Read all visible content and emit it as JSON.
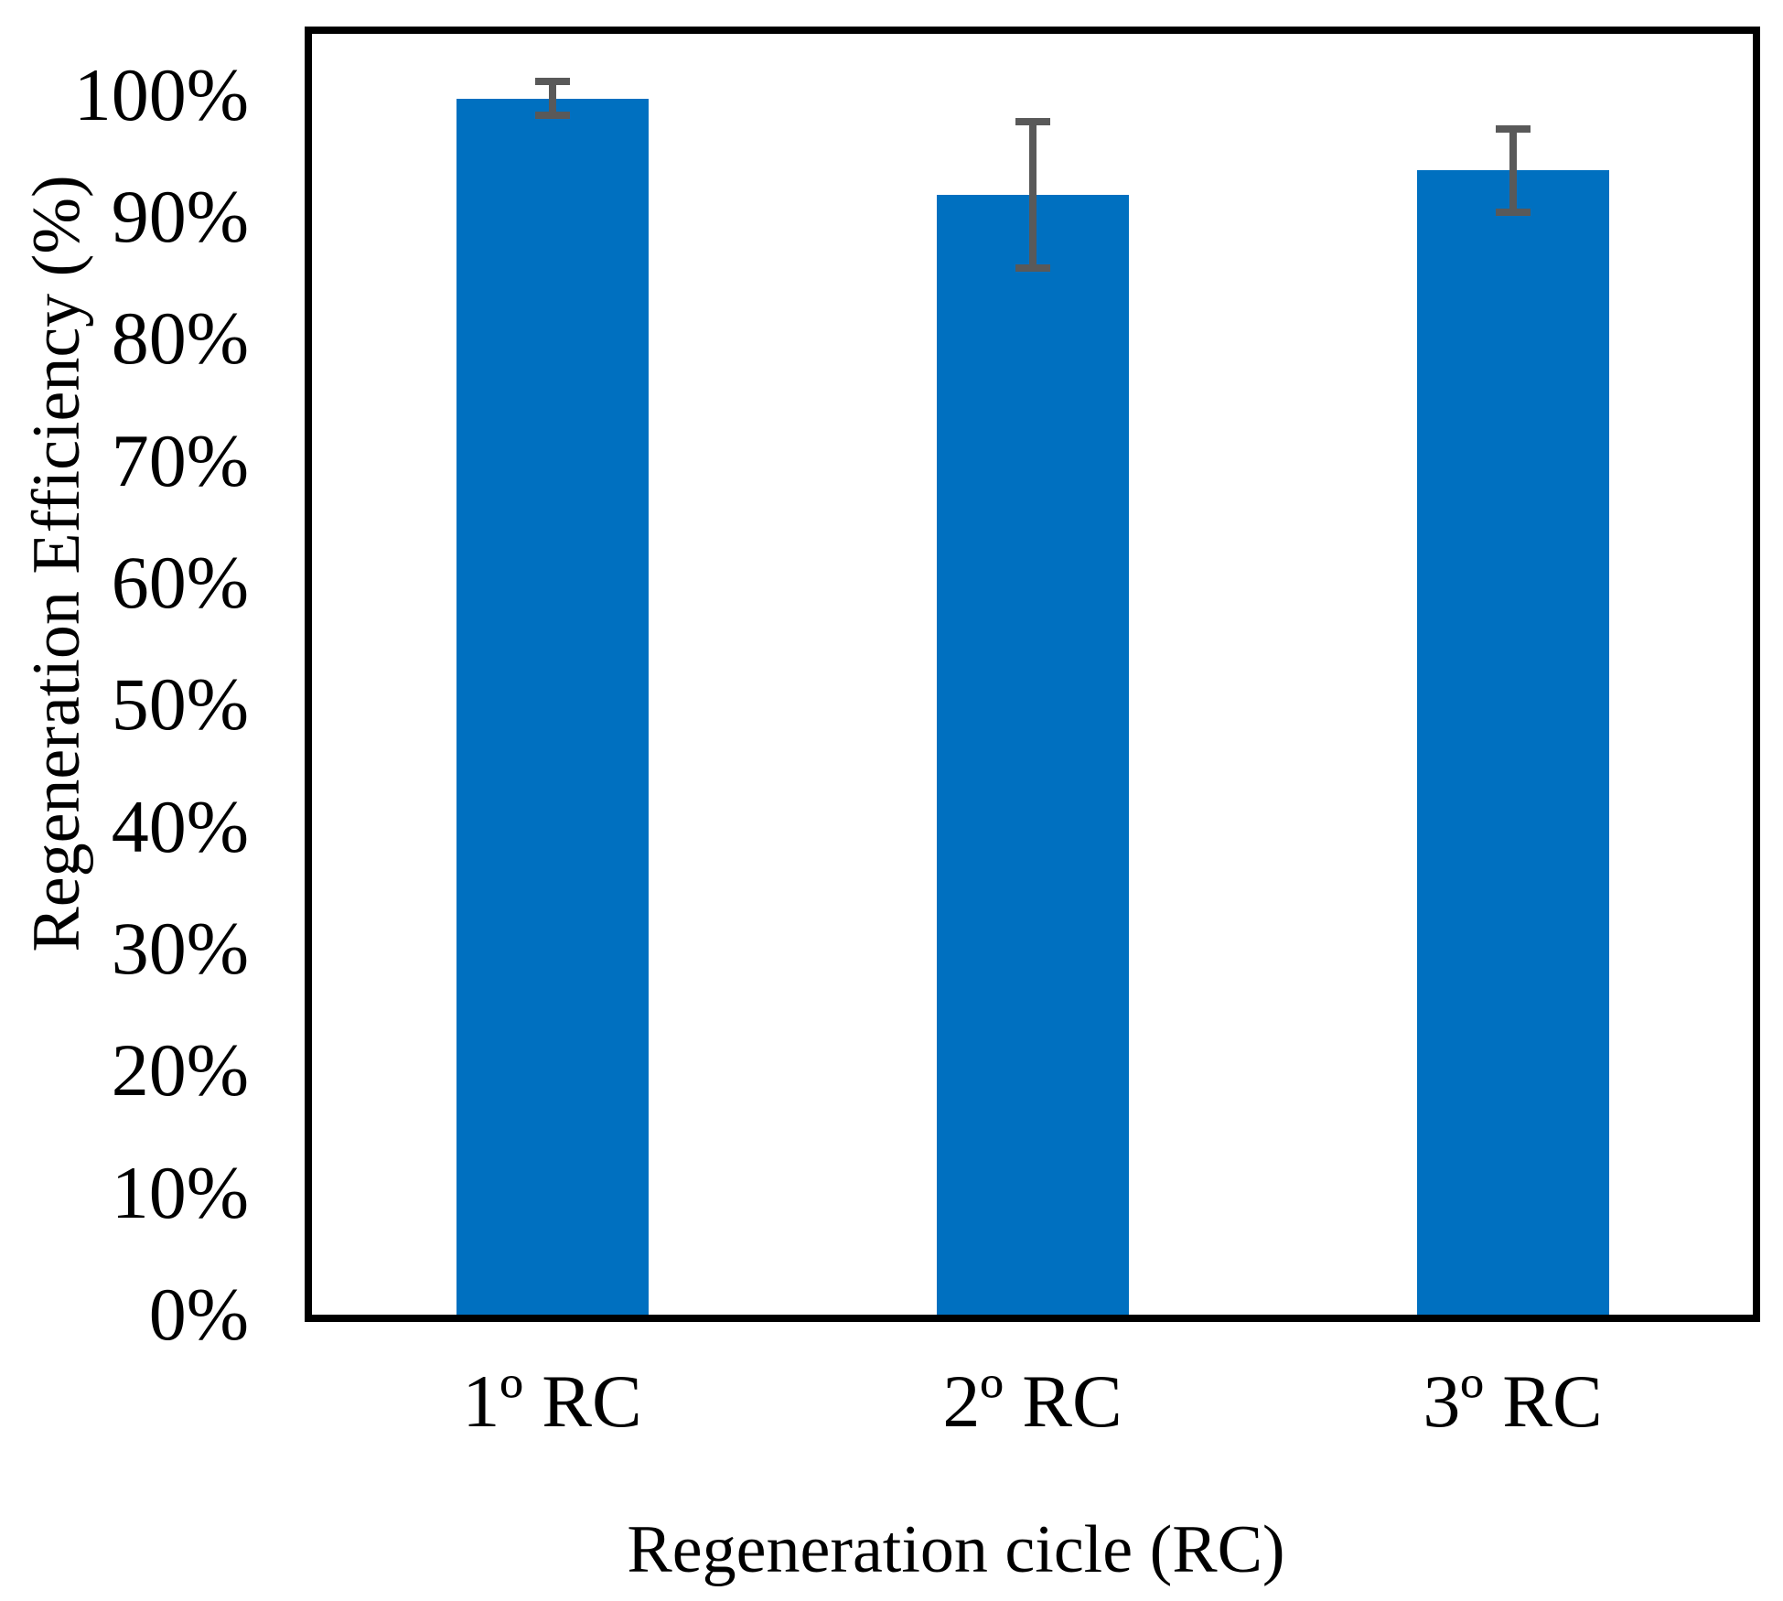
{
  "chart_data": {
    "type": "bar",
    "title": "",
    "xlabel": "Regeneration cicle (RC)",
    "ylabel": "Regeneration Efficiency (%)",
    "categories": [
      "1º RC",
      "2º RC",
      "3º RC"
    ],
    "series": [
      {
        "name": "Regeneration Efficiency",
        "values": [
          99.7,
          91.8,
          93.8
        ],
        "errors": [
          1.4,
          6.0,
          3.4
        ]
      }
    ],
    "value_unit": "%",
    "ylim": [
      0,
      105
    ],
    "ytick_labels": [
      "0%",
      "10%",
      "20%",
      "30%",
      "40%",
      "50%",
      "60%",
      "70%",
      "80%",
      "90%",
      "100%"
    ],
    "ytick_values": [
      0,
      10,
      20,
      30,
      40,
      50,
      60,
      70,
      80,
      90,
      100
    ],
    "grid": false,
    "legend": null,
    "colors": {
      "bar": "#0070C0",
      "error_bar": "#595959",
      "axis": "#000000"
    }
  }
}
